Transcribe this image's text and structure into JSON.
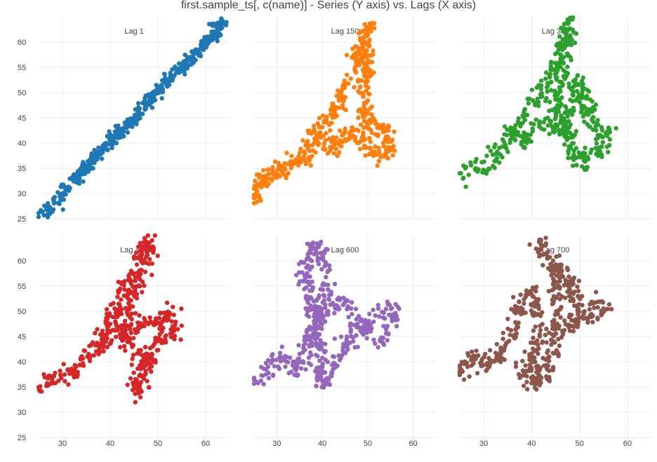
{
  "chart_data": {
    "type": "scatter",
    "title": "first.sample_ts[, c(name)] - Series (Y axis) vs. Lags (X axis)",
    "grid": true,
    "legend": "none",
    "panels": [
      {
        "name": "Lag 1",
        "color": "#1f77b4",
        "xlim": [
          25,
          65
        ],
        "ylim": [
          25,
          65
        ],
        "yticks": [
          25,
          30,
          35,
          40,
          45,
          50,
          55,
          60
        ],
        "xticks": [],
        "path": [
          [
            25.3,
            25.3
          ],
          [
            30,
            30
          ],
          [
            35,
            35.3
          ],
          [
            40,
            40.2
          ],
          [
            45,
            45
          ],
          [
            50,
            50.5
          ],
          [
            55,
            55
          ],
          [
            60,
            60
          ],
          [
            64,
            64
          ]
        ],
        "spread": 0.6,
        "n": 500,
        "seed": 11
      },
      {
        "name": "Lag 150",
        "color": "#ff7f0e",
        "xlim": [
          25,
          65
        ],
        "ylim": [
          25,
          65
        ],
        "yticks": [],
        "xticks": [],
        "path": [
          [
            25,
            28.5
          ],
          [
            26,
            32
          ],
          [
            28,
            33.5
          ],
          [
            32,
            35
          ],
          [
            35,
            37
          ],
          [
            38,
            41
          ],
          [
            40,
            43
          ],
          [
            42,
            45
          ],
          [
            44,
            48
          ],
          [
            45,
            52
          ],
          [
            47,
            55
          ],
          [
            48,
            58
          ],
          [
            50,
            63
          ],
          [
            49,
            46
          ],
          [
            50,
            43
          ],
          [
            52,
            44
          ],
          [
            54,
            42
          ],
          [
            55,
            39
          ],
          [
            52,
            37
          ],
          [
            50,
            40
          ],
          [
            46,
            42
          ],
          [
            42,
            38
          ],
          [
            40,
            40
          ],
          [
            36,
            36
          ]
        ],
        "spread": 0.9,
        "n": 520,
        "seed": 23
      },
      {
        "name": "Lag 300",
        "color": "#2ca02c",
        "xlim": [
          25,
          65
        ],
        "ylim": [
          25,
          65
        ],
        "yticks": [],
        "xticks": [],
        "path": [
          [
            25,
            33.5
          ],
          [
            27,
            35.5
          ],
          [
            30,
            34
          ],
          [
            32,
            37
          ],
          [
            34,
            40
          ],
          [
            36,
            43
          ],
          [
            38,
            45
          ],
          [
            40,
            48
          ],
          [
            42,
            50
          ],
          [
            44,
            53
          ],
          [
            45,
            55
          ],
          [
            46,
            58
          ],
          [
            48,
            64
          ],
          [
            45,
            47
          ],
          [
            46,
            42
          ],
          [
            48,
            47
          ],
          [
            50,
            52
          ],
          [
            52,
            46
          ],
          [
            54,
            42
          ],
          [
            56,
            42
          ],
          [
            54,
            38
          ],
          [
            52,
            37
          ],
          [
            50,
            36
          ],
          [
            47,
            42
          ],
          [
            42,
            44
          ],
          [
            38,
            40
          ],
          [
            36,
            42
          ]
        ],
        "spread": 0.9,
        "n": 520,
        "seed": 37
      },
      {
        "name": "Lag 450",
        "color": "#d62728",
        "xlim": [
          25,
          65
        ],
        "ylim": [
          25,
          65
        ],
        "yticks": [
          25,
          30,
          35,
          40,
          45,
          50,
          55,
          60
        ],
        "xticks": [
          30,
          40,
          50,
          60
        ],
        "path": [
          [
            25.5,
            34
          ],
          [
            27,
            36
          ],
          [
            29,
            38
          ],
          [
            32,
            37
          ],
          [
            34,
            40
          ],
          [
            36,
            42
          ],
          [
            38,
            44
          ],
          [
            40,
            48
          ],
          [
            42,
            52
          ],
          [
            43,
            55
          ],
          [
            46,
            58
          ],
          [
            48,
            64
          ],
          [
            44,
            50
          ],
          [
            42,
            46
          ],
          [
            44,
            44
          ],
          [
            46,
            42
          ],
          [
            48,
            41
          ],
          [
            46,
            38
          ],
          [
            45,
            36
          ],
          [
            46,
            34
          ],
          [
            48,
            40
          ],
          [
            50,
            45
          ],
          [
            52,
            44
          ],
          [
            54,
            47
          ],
          [
            52,
            50
          ],
          [
            50,
            48
          ],
          [
            46,
            48
          ],
          [
            44,
            46
          ],
          [
            40,
            46
          ],
          [
            38,
            42
          ]
        ],
        "spread": 0.85,
        "n": 520,
        "seed": 49
      },
      {
        "name": "Lag 600",
        "color": "#9467bd",
        "xlim": [
          25,
          65
        ],
        "ylim": [
          25,
          65
        ],
        "yticks": [],
        "xticks": [
          30,
          40,
          50,
          60
        ],
        "path": [
          [
            25.5,
            36
          ],
          [
            27,
            38
          ],
          [
            30,
            40
          ],
          [
            32,
            41
          ],
          [
            34,
            38
          ],
          [
            36,
            40
          ],
          [
            37,
            44
          ],
          [
            38,
            46
          ],
          [
            39,
            48
          ],
          [
            40,
            52
          ],
          [
            41,
            55
          ],
          [
            40,
            62
          ],
          [
            38,
            64
          ],
          [
            36,
            58
          ],
          [
            38,
            50
          ],
          [
            40,
            40
          ],
          [
            39,
            37
          ],
          [
            41,
            35
          ],
          [
            42,
            38
          ],
          [
            44,
            42
          ],
          [
            46,
            45
          ],
          [
            48,
            48
          ],
          [
            50,
            47
          ],
          [
            52,
            49
          ],
          [
            54,
            51
          ],
          [
            56,
            50
          ],
          [
            54,
            46
          ],
          [
            52,
            44
          ],
          [
            50,
            45
          ],
          [
            46,
            50
          ],
          [
            44,
            52
          ],
          [
            42,
            50
          ]
        ],
        "spread": 0.85,
        "n": 520,
        "seed": 61
      },
      {
        "name": "Lag 700",
        "color": "#8c564b",
        "xlim": [
          25,
          65
        ],
        "ylim": [
          25,
          65
        ],
        "yticks": [],
        "xticks": [
          30,
          40,
          50,
          60
        ],
        "path": [
          [
            25.5,
            37
          ],
          [
            26,
            40
          ],
          [
            28,
            41
          ],
          [
            30,
            39
          ],
          [
            32,
            40
          ],
          [
            34,
            42
          ],
          [
            36,
            45
          ],
          [
            37,
            49
          ],
          [
            38,
            52
          ],
          [
            40,
            54
          ],
          [
            41,
            50
          ],
          [
            42,
            47
          ],
          [
            41,
            43
          ],
          [
            40,
            40
          ],
          [
            39,
            37
          ],
          [
            41,
            35
          ],
          [
            43,
            38
          ],
          [
            44,
            42
          ],
          [
            45,
            45
          ],
          [
            46,
            48
          ],
          [
            48,
            47
          ],
          [
            50,
            49
          ],
          [
            52,
            51
          ],
          [
            54,
            52
          ],
          [
            55,
            50
          ],
          [
            53,
            48
          ],
          [
            51,
            50
          ],
          [
            48,
            56
          ],
          [
            46,
            58
          ],
          [
            43,
            62
          ],
          [
            41,
            64
          ],
          [
            44,
            60
          ],
          [
            46,
            52
          ],
          [
            44,
            46
          ]
        ],
        "spread": 0.85,
        "n": 520,
        "seed": 73
      }
    ]
  }
}
